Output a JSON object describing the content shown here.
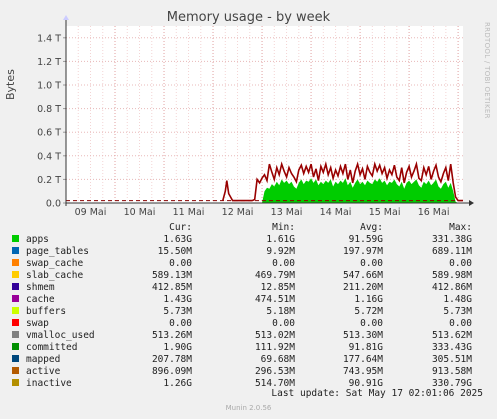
{
  "title": "Memory usage - by week",
  "side_label": "RRDTOOL / TOBI OETIKER",
  "footer": {
    "last_update": "Last update: Sat May 17 02:01:06 2025",
    "munin": "Munin 2.0.56"
  },
  "legend_header": {
    "cur": "Cur:",
    "min": "Min:",
    "avg": "Avg:",
    "max": "Max:"
  },
  "legend": [
    {
      "name": "apps",
      "color": "#00cc00",
      "cur": "1.63G",
      "min": "1.61G",
      "avg": "91.59G",
      "max": "331.38G"
    },
    {
      "name": "page_tables",
      "color": "#0066b3",
      "cur": "15.50M",
      "min": "9.92M",
      "avg": "197.97M",
      "max": "689.11M"
    },
    {
      "name": "swap_cache",
      "color": "#ff8000",
      "cur": "0.00",
      "min": "0.00",
      "avg": "0.00",
      "max": "0.00"
    },
    {
      "name": "slab_cache",
      "color": "#ffcc00",
      "cur": "589.13M",
      "min": "469.79M",
      "avg": "547.66M",
      "max": "589.98M"
    },
    {
      "name": "shmem",
      "color": "#330099",
      "cur": "412.85M",
      "min": "12.85M",
      "avg": "211.20M",
      "max": "412.86M"
    },
    {
      "name": "cache",
      "color": "#990099",
      "cur": "1.43G",
      "min": "474.51M",
      "avg": "1.16G",
      "max": "1.48G"
    },
    {
      "name": "buffers",
      "color": "#ccff00",
      "cur": "5.73M",
      "min": "5.18M",
      "avg": "5.72M",
      "max": "5.73M"
    },
    {
      "name": "swap",
      "color": "#ff0000",
      "cur": "0.00",
      "min": "0.00",
      "avg": "0.00",
      "max": "0.00"
    },
    {
      "name": "vmalloc_used",
      "color": "#808080",
      "cur": "513.26M",
      "min": "513.02M",
      "avg": "513.30M",
      "max": "513.62M"
    },
    {
      "name": "committed",
      "color": "#008f00",
      "cur": "1.90G",
      "min": "111.92M",
      "avg": "91.81G",
      "max": "333.43G"
    },
    {
      "name": "mapped",
      "color": "#00487d",
      "cur": "207.78M",
      "min": "69.68M",
      "avg": "177.64M",
      "max": "305.51M"
    },
    {
      "name": "active",
      "color": "#b35a00",
      "cur": "896.09M",
      "min": "296.53M",
      "avg": "743.95M",
      "max": "913.58M"
    },
    {
      "name": "inactive",
      "color": "#b38f00",
      "cur": "1.26G",
      "min": "514.70M",
      "avg": "90.91G",
      "max": "330.79G"
    }
  ],
  "chart_data": {
    "type": "area",
    "title": "Memory usage - by week",
    "ylabel": "Bytes",
    "ylim": [
      0,
      1.5
    ],
    "y_unit": "T",
    "yticks": [
      "0.0",
      "0.2 T",
      "0.4 T",
      "0.6 T",
      "0.8 T",
      "1.0 T",
      "1.2 T",
      "1.4 T"
    ],
    "ytick_values": [
      0,
      0.2,
      0.4,
      0.6,
      0.8,
      1.0,
      1.2,
      1.4
    ],
    "xticks": [
      "09 Mai",
      "10 Mai",
      "11 Mai",
      "12 Mai",
      "13 Mai",
      "14 Mai",
      "15 Mai",
      "16 Mai"
    ],
    "xlim": [
      0,
      8.1
    ],
    "grid": true,
    "dashed_line": {
      "y": 0.02,
      "color": "#880000"
    },
    "series": [
      {
        "name": "apps",
        "color": "#00cc00",
        "x": [
          0,
          3.85,
          4.0,
          4.05,
          4.1,
          4.15,
          4.2,
          4.25,
          4.3,
          4.35,
          4.4,
          4.45,
          4.5,
          4.55,
          4.6,
          4.65,
          4.7,
          4.75,
          4.8,
          4.85,
          4.9,
          4.95,
          5.0,
          5.05,
          5.1,
          5.15,
          5.2,
          5.25,
          5.3,
          5.35,
          5.4,
          5.45,
          5.5,
          5.55,
          5.6,
          5.65,
          5.7,
          5.75,
          5.8,
          5.85,
          5.9,
          5.95,
          6.0,
          6.05,
          6.1,
          6.15,
          6.2,
          6.25,
          6.3,
          6.35,
          6.4,
          6.45,
          6.5,
          6.55,
          6.6,
          6.65,
          6.7,
          6.75,
          6.8,
          6.85,
          6.9,
          6.95,
          7.0,
          7.05,
          7.1,
          7.15,
          7.2,
          7.25,
          7.3,
          7.35,
          7.4,
          7.45,
          7.5,
          7.55,
          7.6,
          7.65,
          7.7,
          7.75,
          7.8,
          7.85,
          7.9,
          7.95,
          8.0,
          8.1
        ],
        "values": [
          0,
          0,
          0,
          0.1,
          0.13,
          0.12,
          0.16,
          0.14,
          0.18,
          0.15,
          0.2,
          0.17,
          0.19,
          0.16,
          0.18,
          0.14,
          0.12,
          0.17,
          0.2,
          0.16,
          0.19,
          0.18,
          0.21,
          0.17,
          0.2,
          0.15,
          0.18,
          0.16,
          0.19,
          0.17,
          0.2,
          0.14,
          0.18,
          0.16,
          0.19,
          0.17,
          0.21,
          0.15,
          0.18,
          0.13,
          0.17,
          0.2,
          0.16,
          0.18,
          0.15,
          0.19,
          0.17,
          0.16,
          0.2,
          0.18,
          0.21,
          0.17,
          0.19,
          0.15,
          0.18,
          0.17,
          0.2,
          0.16,
          0.14,
          0.18,
          0.12,
          0.17,
          0.19,
          0.16,
          0.18,
          0.2,
          0.15,
          0.13,
          0.18,
          0.16,
          0.19,
          0.15,
          0.17,
          0.2,
          0.14,
          0.12,
          0.16,
          0.18,
          0.13,
          0.17,
          0.1,
          0.01,
          0,
          0
        ]
      },
      {
        "name": "committed",
        "color": "#990000",
        "x": [
          0,
          3.2,
          3.25,
          3.28,
          3.32,
          3.4,
          3.8,
          3.85,
          3.9,
          3.95,
          4.0,
          4.05,
          4.1,
          4.15,
          4.2,
          4.25,
          4.3,
          4.35,
          4.4,
          4.45,
          4.5,
          4.55,
          4.6,
          4.65,
          4.7,
          4.75,
          4.8,
          4.85,
          4.9,
          4.95,
          5.0,
          5.05,
          5.1,
          5.15,
          5.2,
          5.25,
          5.3,
          5.35,
          5.4,
          5.45,
          5.5,
          5.55,
          5.6,
          5.65,
          5.7,
          5.75,
          5.8,
          5.85,
          5.9,
          5.95,
          6.0,
          6.05,
          6.1,
          6.15,
          6.2,
          6.25,
          6.3,
          6.35,
          6.4,
          6.45,
          6.5,
          6.55,
          6.6,
          6.65,
          6.7,
          6.75,
          6.8,
          6.85,
          6.9,
          6.95,
          7.0,
          7.05,
          7.1,
          7.15,
          7.2,
          7.25,
          7.3,
          7.35,
          7.4,
          7.45,
          7.5,
          7.55,
          7.6,
          7.65,
          7.7,
          7.75,
          7.8,
          7.85,
          7.9,
          7.95,
          8.0,
          8.1
        ],
        "values": [
          0.02,
          0.02,
          0.1,
          0.19,
          0.08,
          0.02,
          0.02,
          0.03,
          0.2,
          0.17,
          0.21,
          0.24,
          0.19,
          0.33,
          0.26,
          0.2,
          0.3,
          0.24,
          0.33,
          0.27,
          0.22,
          0.3,
          0.25,
          0.22,
          0.18,
          0.28,
          0.32,
          0.25,
          0.31,
          0.26,
          0.33,
          0.22,
          0.29,
          0.19,
          0.31,
          0.26,
          0.33,
          0.24,
          0.3,
          0.21,
          0.28,
          0.23,
          0.31,
          0.25,
          0.33,
          0.2,
          0.28,
          0.17,
          0.27,
          0.33,
          0.24,
          0.29,
          0.2,
          0.31,
          0.26,
          0.23,
          0.33,
          0.27,
          0.32,
          0.25,
          0.3,
          0.21,
          0.28,
          0.24,
          0.32,
          0.22,
          0.19,
          0.3,
          0.17,
          0.26,
          0.31,
          0.22,
          0.27,
          0.33,
          0.21,
          0.19,
          0.3,
          0.24,
          0.31,
          0.2,
          0.27,
          0.32,
          0.22,
          0.18,
          0.25,
          0.3,
          0.19,
          0.33,
          0.17,
          0.05,
          0.02,
          0.02
        ]
      }
    ]
  }
}
